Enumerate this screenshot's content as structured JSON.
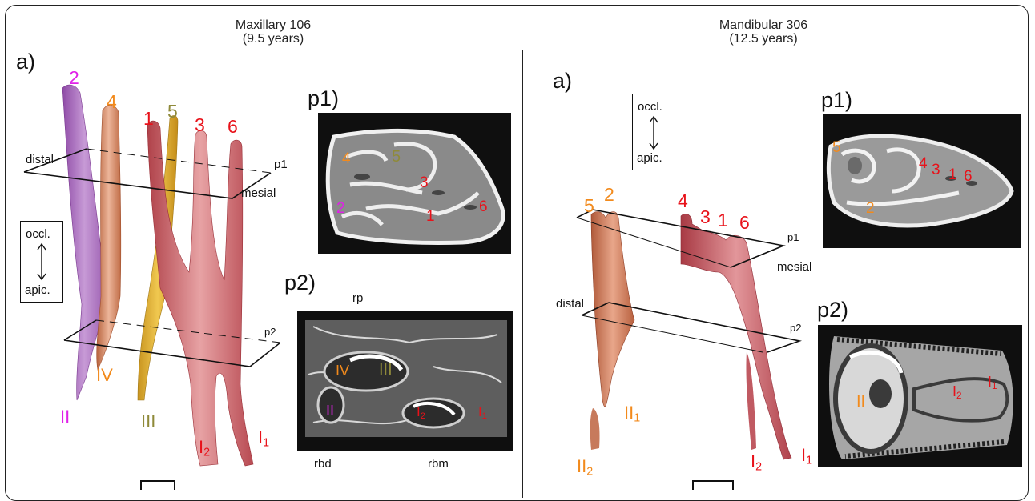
{
  "left": {
    "title": "Maxillary 106",
    "subtitle": "(9.5 years)",
    "panel_a": "a)",
    "panel_p1": "p1)",
    "panel_p2": "p2)",
    "plane_labels": {
      "distal": "distal",
      "mesial": "mesial",
      "p1": "p1",
      "p2": "p2"
    },
    "orientation": {
      "top": "occl.",
      "bottom": "apic."
    },
    "root_numbers": [
      "2",
      "4",
      "1",
      "5",
      "3",
      "6"
    ],
    "apex_labels": [
      "II",
      "IV",
      "III",
      "I",
      "2",
      "I",
      "1"
    ],
    "p1_labels": [
      "4",
      "5",
      "3",
      "2",
      "1",
      "6"
    ],
    "p2_labels": {
      "iv": "IV",
      "iii": "III",
      "ii": "II",
      "i2": "I",
      "i2sub": "2",
      "i1": "I",
      "i1sub": "1",
      "rp": "rp",
      "rbd": "rbd",
      "rbm": "rbm"
    }
  },
  "right": {
    "title": "Mandibular 306",
    "subtitle": "(12.5 years)",
    "panel_a": "a)",
    "panel_p1": "p1)",
    "panel_p2": "p2)",
    "plane_labels": {
      "distal": "distal",
      "mesial": "mesial",
      "p1": "p1",
      "p2": "p2"
    },
    "orientation": {
      "top": "occl.",
      "bottom": "apic."
    },
    "root_numbers": [
      "5",
      "2",
      "4",
      "3",
      "1",
      "6"
    ],
    "apex_labels": [
      "II",
      "1",
      "II",
      "2",
      "I",
      "2",
      "I",
      "1"
    ],
    "p1_labels": [
      "5",
      "4",
      "3",
      "1",
      "6",
      "2"
    ],
    "p2_labels": {
      "ii": "II",
      "i2": "I",
      "i2sub": "2",
      "i1": "I",
      "i1sub": "1"
    }
  },
  "colors": {
    "red": "#e8121a",
    "orange": "#f28a1c",
    "magenta": "#e020e8",
    "olive": "#8f8a3a",
    "root_red": "#c9545a",
    "root_orange": "#e0907a",
    "root_purple": "#b070c0",
    "root_yellow": "#e0b030"
  }
}
